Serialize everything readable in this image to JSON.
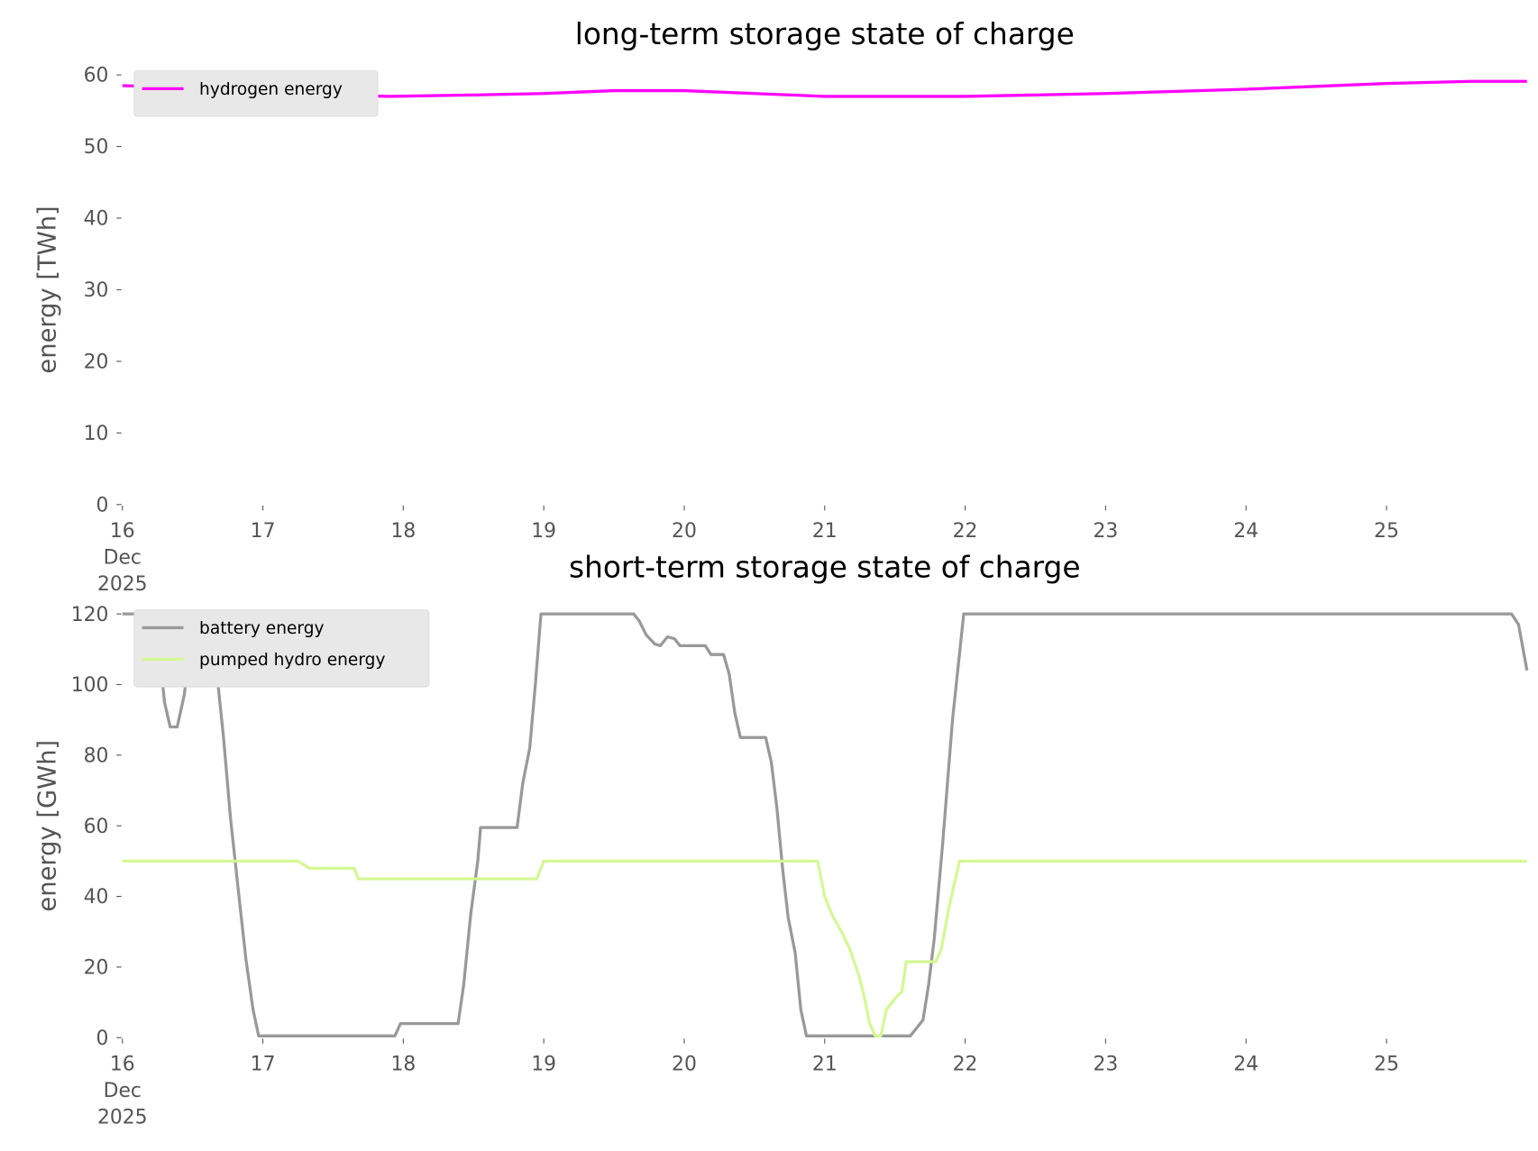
{
  "chart_data": [
    {
      "type": "line",
      "title": "long-term storage state of charge",
      "ylabel": "energy [TWh]",
      "xlim": [
        16,
        26
      ],
      "ylim": [
        0,
        60
      ],
      "yticks": [
        0,
        10,
        20,
        30,
        40,
        50,
        60
      ],
      "xticks": [
        {
          "value": 16,
          "label": "16\nDec\n2025"
        },
        17,
        18,
        19,
        20,
        21,
        22,
        23,
        24,
        25
      ],
      "grid": false,
      "legend": "upper left",
      "series": [
        {
          "name": "hydrogen energy",
          "color": "#ff00ff",
          "x": [
            16,
            16.5,
            17,
            17.5,
            17.9,
            18.5,
            19,
            19.5,
            20,
            20.5,
            21,
            21.5,
            22,
            22.5,
            23,
            23.5,
            24,
            24.5,
            25,
            25.6,
            26
          ],
          "values": [
            58.5,
            58.2,
            57.6,
            57.2,
            57,
            57.2,
            57.4,
            57.8,
            57.8,
            57.4,
            57,
            57,
            57,
            57.2,
            57.4,
            57.7,
            58,
            58.4,
            58.8,
            59.1,
            59.1
          ]
        }
      ]
    },
    {
      "type": "line",
      "title": "short-term storage state of charge",
      "ylabel": "energy [GWh]",
      "xlim": [
        16,
        26
      ],
      "ylim": [
        0,
        120
      ],
      "yticks": [
        0,
        20,
        40,
        60,
        80,
        100,
        120
      ],
      "xticks": [
        {
          "value": 16,
          "label": "16\nDec\n2025"
        },
        17,
        18,
        19,
        20,
        21,
        22,
        23,
        24,
        25
      ],
      "grid": false,
      "legend": "upper left",
      "series": [
        {
          "name": "battery energy",
          "color": "#999999",
          "x": [
            16,
            16.22,
            16.26,
            16.3,
            16.34,
            16.39,
            16.44,
            16.48,
            16.52,
            16.62,
            16.66,
            16.72,
            16.77,
            16.83,
            16.88,
            16.93,
            16.97,
            17.94,
            17.98,
            18.39,
            18.43,
            18.48,
            18.53,
            18.55,
            18.81,
            18.85,
            18.9,
            18.94,
            18.98,
            19.64,
            19.68,
            19.73,
            19.79,
            19.83,
            19.88,
            19.93,
            19.97,
            20.15,
            20.19,
            20.28,
            20.32,
            20.36,
            20.4,
            20.58,
            20.62,
            20.66,
            20.7,
            20.74,
            20.79,
            20.83,
            20.87,
            21.61,
            21.7,
            21.74,
            21.78,
            21.84,
            21.91,
            21.99,
            25.89,
            25.94,
            26
          ],
          "values": [
            120,
            120,
            110,
            95,
            88,
            88,
            97,
            110,
            120,
            120,
            108,
            85,
            62,
            40,
            22,
            8,
            0.5,
            0.5,
            4,
            4,
            15,
            35,
            50,
            59.5,
            59.5,
            72,
            82,
            100,
            120,
            120,
            118,
            114,
            111.5,
            111,
            113.5,
            113,
            111,
            111,
            108.5,
            108.5,
            103,
            92,
            85,
            85,
            78,
            65,
            48,
            34,
            24,
            8,
            0.5,
            0.5,
            5,
            15,
            28,
            55,
            90,
            120,
            120,
            117,
            104
          ]
        },
        {
          "name": "pumped hydro energy",
          "color": "#d5f894",
          "x": [
            16,
            17.25,
            17.33,
            17.65,
            17.68,
            18.95,
            19,
            20.95,
            21,
            21.05,
            21.12,
            21.18,
            21.24,
            21.28,
            21.32,
            21.36,
            21.4,
            21.44,
            21.52,
            21.55,
            21.58,
            21.79,
            21.83,
            21.88,
            21.96,
            26
          ],
          "values": [
            50,
            50,
            48,
            48,
            45,
            45,
            50,
            50,
            40,
            35,
            30,
            25,
            18,
            12,
            4,
            0.5,
            0.5,
            8,
            12,
            13,
            21.5,
            21.5,
            25,
            36,
            50,
            50
          ]
        }
      ]
    }
  ]
}
